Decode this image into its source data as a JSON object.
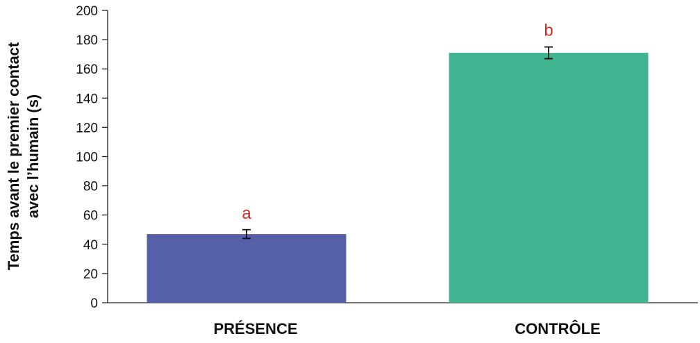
{
  "chart_data": {
    "type": "bar",
    "categories": [
      "PRÉSENCE",
      "CONTRÔLE"
    ],
    "values": [
      47,
      171
    ],
    "error": [
      3,
      4
    ],
    "significance_letters": [
      "a",
      "b"
    ],
    "colors": [
      "#5460a8",
      "#42b491"
    ],
    "letter_color": "#d42a1e",
    "title": "",
    "xlabel": "",
    "ylabel_lines": [
      "Temps avant le premier contact",
      "avec l’humain (s)"
    ],
    "ylim": [
      0,
      200
    ],
    "yticks": [
      0,
      20,
      40,
      60,
      80,
      100,
      120,
      140,
      160,
      180,
      200
    ],
    "grid": false,
    "legend": "none"
  }
}
